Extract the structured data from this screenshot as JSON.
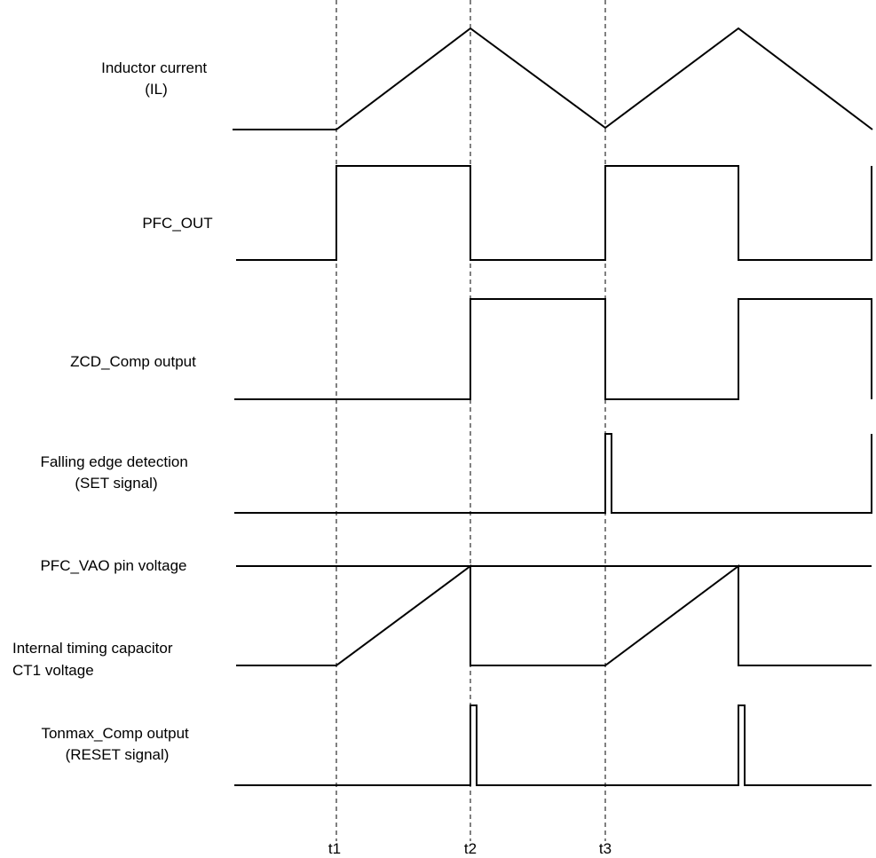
{
  "diagram": {
    "signals": [
      {
        "id": "il",
        "lines": [
          "Inductor current",
          "(IL)"
        ]
      },
      {
        "id": "pfc-out",
        "lines": [
          "PFC_OUT"
        ]
      },
      {
        "id": "zcd",
        "lines": [
          "ZCD_Comp output"
        ]
      },
      {
        "id": "set",
        "lines": [
          "Falling edge detection",
          "(SET signal)"
        ]
      },
      {
        "id": "vao",
        "lines": [
          "PFC_VAO pin voltage"
        ]
      },
      {
        "id": "ct1",
        "lines": [
          "Internal timing capacitor",
          "CT1 voltage"
        ]
      },
      {
        "id": "reset",
        "lines": [
          "Tonmax_Comp output",
          "(RESET signal)"
        ]
      }
    ],
    "time_markers": [
      "t1",
      "t2",
      "t3"
    ]
  }
}
